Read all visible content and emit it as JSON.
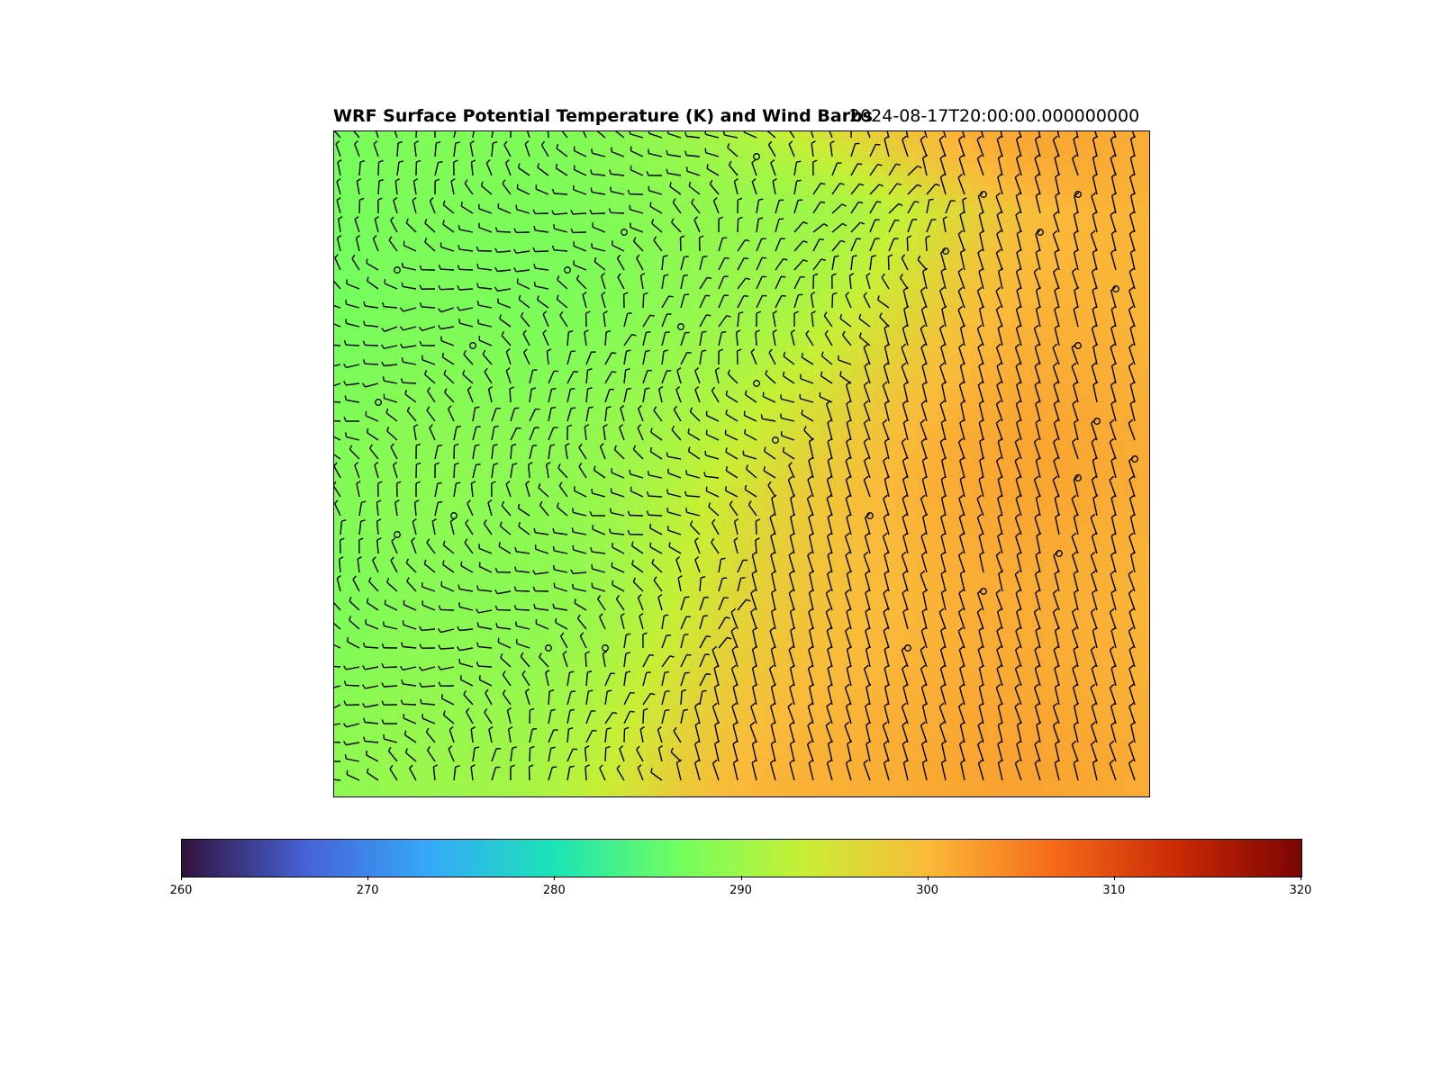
{
  "chart_data": {
    "type": "heatmap",
    "title": "WRF Surface Potential Temperature (K) and Wind Barbs",
    "subtitle": "2024-08-17T20:00:00.000000000",
    "variable": "surface potential temperature",
    "units": "K",
    "overlay": "wind barbs",
    "colormap": "turbo",
    "colorbar": {
      "orientation": "horizontal",
      "placement": "bottom",
      "range": [
        260,
        320
      ],
      "ticks": [
        260,
        270,
        280,
        290,
        300,
        310,
        320
      ],
      "tick_labels": [
        "260",
        "270",
        "280",
        "290",
        "300",
        "310",
        "320"
      ]
    },
    "field_range_K": [
      285,
      302
    ],
    "regions": [
      {
        "name": "northwest",
        "approx_K": 287
      },
      {
        "name": "center",
        "approx_K": 293
      },
      {
        "name": "southeast",
        "approx_K": 301
      }
    ],
    "grid": false
  },
  "colors": {
    "turbo_stops": [
      "#30123b",
      "#4662d7",
      "#36aaf9",
      "#1ae4b6",
      "#72fe5e",
      "#c8ef34",
      "#faba39",
      "#f66b19",
      "#ca2a04",
      "#7a0403"
    ],
    "barb": "#000000",
    "frame": "#000000"
  }
}
